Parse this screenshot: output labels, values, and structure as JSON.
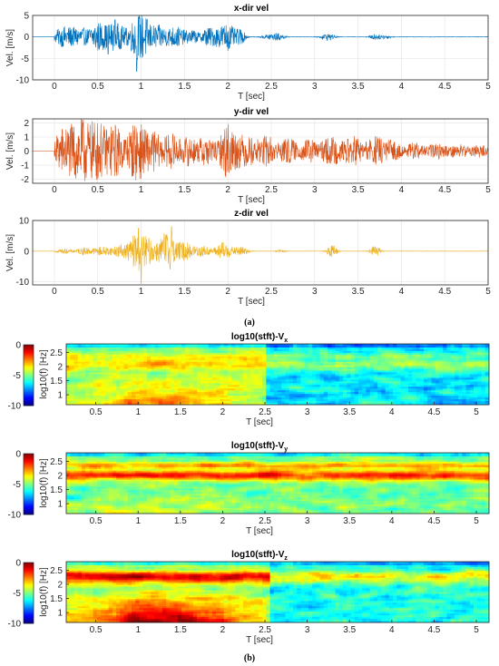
{
  "captions": {
    "a": "(a)",
    "b": "(b)"
  },
  "colors": {
    "x": "#0072BD",
    "y": "#D95319",
    "z": "#EDB120",
    "grid": "#e6e6e6",
    "axis": "#262626"
  },
  "colormap": "jet",
  "chart_data": [
    {
      "type": "line",
      "title": "x-dir vel",
      "xlabel": "T [sec]",
      "ylabel": "Vel. [m/s]",
      "xlim": [
        -0.25,
        5
      ],
      "ylim": [
        -10,
        5
      ],
      "xticks": [
        "0",
        "0.5",
        "1",
        "1.5",
        "2",
        "2.5",
        "3",
        "3.5",
        "4",
        "4.5",
        "5"
      ],
      "yticks": [
        "-10",
        "-5",
        "0",
        "5"
      ],
      "grid": true,
      "series": [
        {
          "color_key": "x",
          "bursts": [
            {
              "t": 0.05,
              "w": 0.08,
              "a": 1.2
            },
            {
              "t": 0.15,
              "w": 0.1,
              "a": 2.0
            },
            {
              "t": 0.3,
              "w": 0.1,
              "a": 2.0
            },
            {
              "t": 0.5,
              "w": 0.1,
              "a": 3.5
            },
            {
              "t": 0.63,
              "w": 0.06,
              "a": 1.5
            },
            {
              "t": 0.73,
              "w": 0.1,
              "a": 3.0
            },
            {
              "t": 0.95,
              "w": 0.1,
              "a": 4.5
            },
            {
              "t": 1.05,
              "w": 0.08,
              "a": 3.0
            },
            {
              "t": 1.2,
              "w": 0.1,
              "a": 2.5
            },
            {
              "t": 1.4,
              "w": 0.12,
              "a": 2.5
            },
            {
              "t": 1.6,
              "w": 0.08,
              "a": 1.5
            },
            {
              "t": 1.75,
              "w": 0.06,
              "a": 1.5
            },
            {
              "t": 1.85,
              "w": 0.1,
              "a": 1.8
            },
            {
              "t": 2.0,
              "w": 0.1,
              "a": 3.0
            },
            {
              "t": 2.15,
              "w": 0.06,
              "a": 1.5
            },
            {
              "t": 2.5,
              "w": 0.1,
              "a": 0.8
            },
            {
              "t": 2.6,
              "w": 0.06,
              "a": 0.5
            },
            {
              "t": 3.15,
              "w": 0.08,
              "a": 0.8
            },
            {
              "t": 3.7,
              "w": 0.06,
              "a": 0.7
            },
            {
              "t": 3.82,
              "w": 0.06,
              "a": 0.5
            }
          ],
          "spikes": [
            {
              "t": 0.95,
              "v": -8
            },
            {
              "t": 0.62,
              "v": -4
            },
            {
              "t": 0.7,
              "v": 4
            }
          ]
        }
      ]
    },
    {
      "type": "line",
      "title": "y-dir vel",
      "xlabel": "T [sec]",
      "ylabel": "Vel. [m/s]",
      "xlim": [
        -0.25,
        5
      ],
      "ylim": [
        -2.3,
        2.3
      ],
      "xticks": [
        "0",
        "0.5",
        "1",
        "1.5",
        "2",
        "2.5",
        "3",
        "3.5",
        "4",
        "4.5",
        "5"
      ],
      "yticks": [
        "-2",
        "-1",
        "0",
        "1",
        "2"
      ],
      "grid": true,
      "series": [
        {
          "color_key": "y",
          "bursts": [
            {
              "t": 0.1,
              "w": 0.12,
              "a": 1.5
            },
            {
              "t": 0.3,
              "w": 0.12,
              "a": 2.0
            },
            {
              "t": 0.5,
              "w": 0.12,
              "a": 1.8
            },
            {
              "t": 0.7,
              "w": 0.1,
              "a": 1.6
            },
            {
              "t": 0.95,
              "w": 0.12,
              "a": 2.0
            },
            {
              "t": 1.15,
              "w": 0.1,
              "a": 1.2
            },
            {
              "t": 1.35,
              "w": 0.1,
              "a": 1.2
            },
            {
              "t": 1.55,
              "w": 0.1,
              "a": 1.0
            },
            {
              "t": 1.75,
              "w": 0.1,
              "a": 1.1
            },
            {
              "t": 2.0,
              "w": 0.1,
              "a": 1.9
            },
            {
              "t": 2.2,
              "w": 0.12,
              "a": 1.0
            },
            {
              "t": 2.45,
              "w": 0.12,
              "a": 0.9
            },
            {
              "t": 2.7,
              "w": 0.1,
              "a": 0.7
            },
            {
              "t": 2.95,
              "w": 0.12,
              "a": 0.7
            },
            {
              "t": 3.2,
              "w": 0.12,
              "a": 0.9
            },
            {
              "t": 3.45,
              "w": 0.12,
              "a": 1.0
            },
            {
              "t": 3.7,
              "w": 0.12,
              "a": 1.0
            },
            {
              "t": 3.9,
              "w": 0.1,
              "a": 0.7
            },
            {
              "t": 4.15,
              "w": 0.1,
              "a": 0.5
            },
            {
              "t": 4.4,
              "w": 0.1,
              "a": 0.4
            },
            {
              "t": 4.65,
              "w": 0.1,
              "a": 0.3
            },
            {
              "t": 4.9,
              "w": 0.1,
              "a": 0.25
            }
          ],
          "floor": 0.2,
          "spikes": []
        }
      ]
    },
    {
      "type": "line",
      "title": "z-dir vel",
      "xlabel": "T [sec]",
      "ylabel": "Vel. [m/s]",
      "xlim": [
        -0.25,
        5
      ],
      "ylim": [
        -11,
        10
      ],
      "xticks": [
        "0",
        "0.5",
        "1",
        "1.5",
        "2",
        "2.5",
        "3",
        "3.5",
        "4",
        "4.5",
        "5"
      ],
      "yticks": [
        "-10",
        "0",
        "10"
      ],
      "grid": true,
      "series": [
        {
          "color_key": "z",
          "bursts": [
            {
              "t": 0.1,
              "w": 0.1,
              "a": 0.8
            },
            {
              "t": 0.35,
              "w": 0.1,
              "a": 1.2
            },
            {
              "t": 0.55,
              "w": 0.1,
              "a": 1.5
            },
            {
              "t": 0.75,
              "w": 0.1,
              "a": 2.0
            },
            {
              "t": 0.95,
              "w": 0.1,
              "a": 6.0
            },
            {
              "t": 1.1,
              "w": 0.1,
              "a": 3.5
            },
            {
              "t": 1.3,
              "w": 0.1,
              "a": 6.5
            },
            {
              "t": 1.5,
              "w": 0.1,
              "a": 3.0
            },
            {
              "t": 1.7,
              "w": 0.1,
              "a": 2.0
            },
            {
              "t": 1.95,
              "w": 0.1,
              "a": 3.0
            },
            {
              "t": 2.15,
              "w": 0.08,
              "a": 1.5
            },
            {
              "t": 2.6,
              "w": 0.06,
              "a": 0.4
            },
            {
              "t": 3.2,
              "w": 0.06,
              "a": 2.0
            },
            {
              "t": 3.7,
              "w": 0.06,
              "a": 1.8
            }
          ],
          "spikes": [
            {
              "t": 1.0,
              "v": -10.5
            },
            {
              "t": 1.35,
              "v": 8
            },
            {
              "t": 0.97,
              "v": 7.5
            }
          ]
        }
      ]
    },
    {
      "type": "heatmap",
      "title": "log10(stft)-V",
      "title_sub": "x",
      "xlabel": "T [sec]",
      "ylabel": "log10(f) [Hz]",
      "xlim": [
        0.15,
        5.15
      ],
      "ylim": [
        0.65,
        2.8
      ],
      "xticks": [
        "0.5",
        "1",
        "1.5",
        "2",
        "2.5",
        "3",
        "3.5",
        "4",
        "4.5",
        "5"
      ],
      "yticks": [
        "1",
        "1.5",
        "2",
        "2.5"
      ],
      "colorbar": {
        "ticks": [
          "0",
          "-5",
          "-10"
        ],
        "clim": [
          -10,
          0
        ]
      },
      "field": {
        "base": -4.8,
        "band": 2.05,
        "band_amp": 1.5,
        "low_amp": 1.8,
        "low_end": 2.45,
        "cutoff": 2.5,
        "after": -6.5
      }
    },
    {
      "type": "heatmap",
      "title": "log10(stft)-V",
      "title_sub": "y",
      "xlabel": "T [sec]",
      "ylabel": "log10(f) [Hz]",
      "xlim": [
        0.15,
        5.15
      ],
      "ylim": [
        0.65,
        2.8
      ],
      "xticks": [
        "0.5",
        "1",
        "1.5",
        "2",
        "2.5",
        "3",
        "3.5",
        "4",
        "4.5",
        "5"
      ],
      "yticks": [
        "1",
        "1.5",
        "2",
        "2.5"
      ],
      "colorbar": {
        "ticks": [
          "0",
          "-5",
          "-10"
        ],
        "clim": [
          -10,
          0
        ]
      },
      "field": {
        "base": -5.2,
        "band": 2.0,
        "band_amp": 3.6,
        "low_amp": 0.8,
        "low_end": 2.5,
        "cutoff": 5.2,
        "after": -5.6
      }
    },
    {
      "type": "heatmap",
      "title": "log10(stft)-V",
      "title_sub": "z",
      "xlabel": "T [sec]",
      "ylabel": "log10(f) [Hz]",
      "xlim": [
        0.15,
        5.15
      ],
      "ylim": [
        0.65,
        2.8
      ],
      "xticks": [
        "0.5",
        "1",
        "1.5",
        "2",
        "2.5",
        "3",
        "3.5",
        "4",
        "4.5",
        "5"
      ],
      "yticks": [
        "1",
        "1.5",
        "2",
        "2.5"
      ],
      "colorbar": {
        "ticks": [
          "0",
          "-5",
          "-10"
        ],
        "clim": [
          -10,
          0
        ]
      },
      "field": {
        "base": -4.6,
        "band": 2.2,
        "band_amp": 2.8,
        "low_amp": 3.6,
        "low_end": 2.5,
        "cutoff": 2.55,
        "after": -6.0
      }
    }
  ]
}
